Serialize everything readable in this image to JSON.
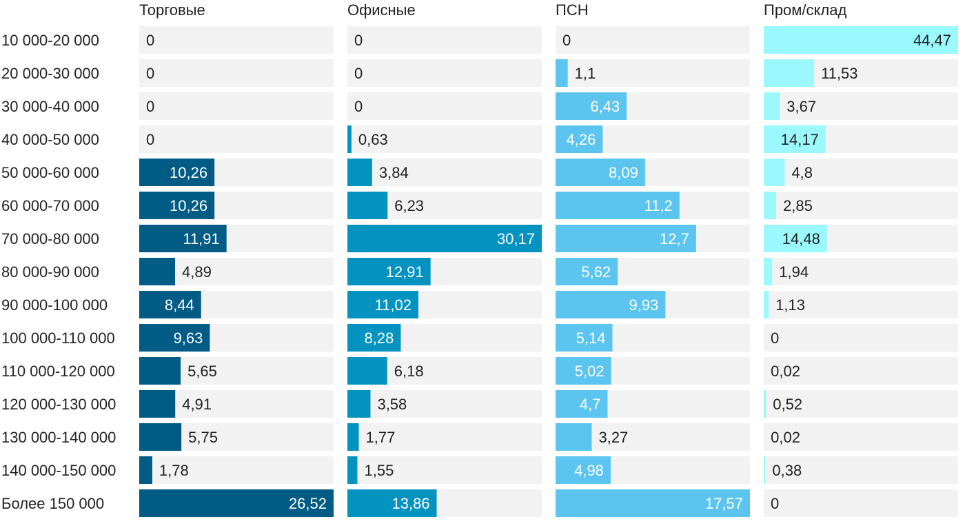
{
  "chart_data": {
    "type": "bar",
    "orientation": "horizontal",
    "layout": "small-multiples",
    "categories": [
      "10 000-20 000",
      "20 000-30 000",
      "30 000-40 000",
      "40 000-50 000",
      "50 000-60 000",
      "60 000-70 000",
      "70 000-80 000",
      "80 000-90 000",
      "90 000-100 000",
      "100 000-110 000",
      "110 000-120 000",
      "120 000-130 000",
      "130 000-140 000",
      "140 000-150 000",
      "Более 150 000"
    ],
    "series": [
      {
        "name": "Торговые",
        "color": "#005b85",
        "max": 26.52,
        "values": [
          0,
          0,
          0,
          0,
          10.26,
          10.26,
          11.91,
          4.89,
          8.44,
          9.63,
          5.65,
          4.91,
          5.75,
          1.78,
          26.52
        ],
        "labels": [
          "0",
          "0",
          "0",
          "0",
          "10,26",
          "10,26",
          "11,91",
          "4,89",
          "8,44",
          "9,63",
          "5,65",
          "4,91",
          "5,75",
          "1,78",
          "26,52"
        ]
      },
      {
        "name": "Офисные",
        "color": "#0493c0",
        "max": 30.17,
        "values": [
          0,
          0,
          0,
          0.63,
          3.84,
          6.23,
          30.17,
          12.91,
          11.02,
          8.28,
          6.18,
          3.58,
          1.77,
          1.55,
          13.86
        ],
        "labels": [
          "0",
          "0",
          "0",
          "0,63",
          "3,84",
          "6,23",
          "30,17",
          "12,91",
          "11,02",
          "8,28",
          "6,18",
          "3,58",
          "1,77",
          "1,55",
          "13,86"
        ]
      },
      {
        "name": "ПСН",
        "color": "#5bc5f0",
        "max": 17.57,
        "values": [
          0,
          1.1,
          6.43,
          4.26,
          8.09,
          11.2,
          12.7,
          5.62,
          9.93,
          5.14,
          5.02,
          4.7,
          3.27,
          4.98,
          17.57
        ],
        "labels": [
          "0",
          "1,1",
          "6,43",
          "4,26",
          "8,09",
          "11,2",
          "12,7",
          "5,62",
          "9,93",
          "5,14",
          "5,02",
          "4,7",
          "3,27",
          "4,98",
          "17,57"
        ]
      },
      {
        "name": "Пром/склад",
        "color": "#9bf8fd",
        "max": 44.47,
        "values": [
          44.47,
          11.53,
          3.67,
          14.17,
          4.8,
          2.85,
          14.48,
          1.94,
          1.13,
          0,
          0.02,
          0.52,
          0.02,
          0.38,
          0
        ],
        "labels": [
          "44,47",
          "11,53",
          "3,67",
          "14,17",
          "4,8",
          "2,85",
          "14,48",
          "1,94",
          "1,13",
          "0",
          "0,02",
          "0,52",
          "0,02",
          "0,38",
          "0"
        ]
      }
    ],
    "track_color": "#f2f2f2",
    "dark_label_color": "#222222",
    "light_label_color": "#ffffff",
    "legend": "none",
    "grid": false
  }
}
